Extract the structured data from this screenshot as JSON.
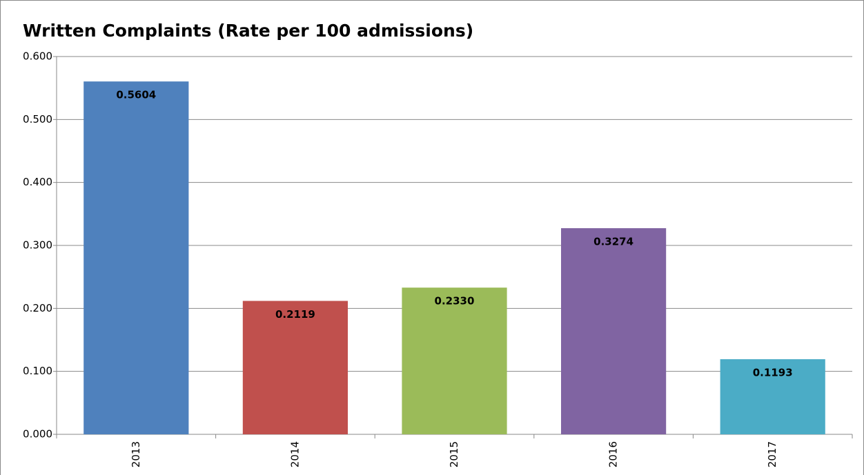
{
  "chart_data": {
    "type": "bar",
    "title": "Written Complaints (Rate per 100 admissions)",
    "categories": [
      "2013",
      "2014",
      "2015",
      "2016",
      "2017"
    ],
    "values": [
      0.5604,
      0.2119,
      0.233,
      0.3274,
      0.1193
    ],
    "value_labels": [
      "0.5604",
      "0.2119",
      "0.2330",
      "0.3274",
      "0.1193"
    ],
    "colors": [
      "#4f81bd",
      "#c0504d",
      "#9bbb59",
      "#8064a2",
      "#4bacc6"
    ],
    "ylim": [
      0,
      0.6
    ],
    "yticks": [
      {
        "value": 0,
        "label": "0.000"
      },
      {
        "value": 0.1,
        "label": "0.100"
      },
      {
        "value": 0.2,
        "label": "0.200"
      },
      {
        "value": 0.3,
        "label": "0.300"
      },
      {
        "value": 0.4,
        "label": "0.400"
      },
      {
        "value": 0.5,
        "label": "0.500"
      },
      {
        "value": 0.6,
        "label": "0.600"
      }
    ],
    "grid": true
  }
}
